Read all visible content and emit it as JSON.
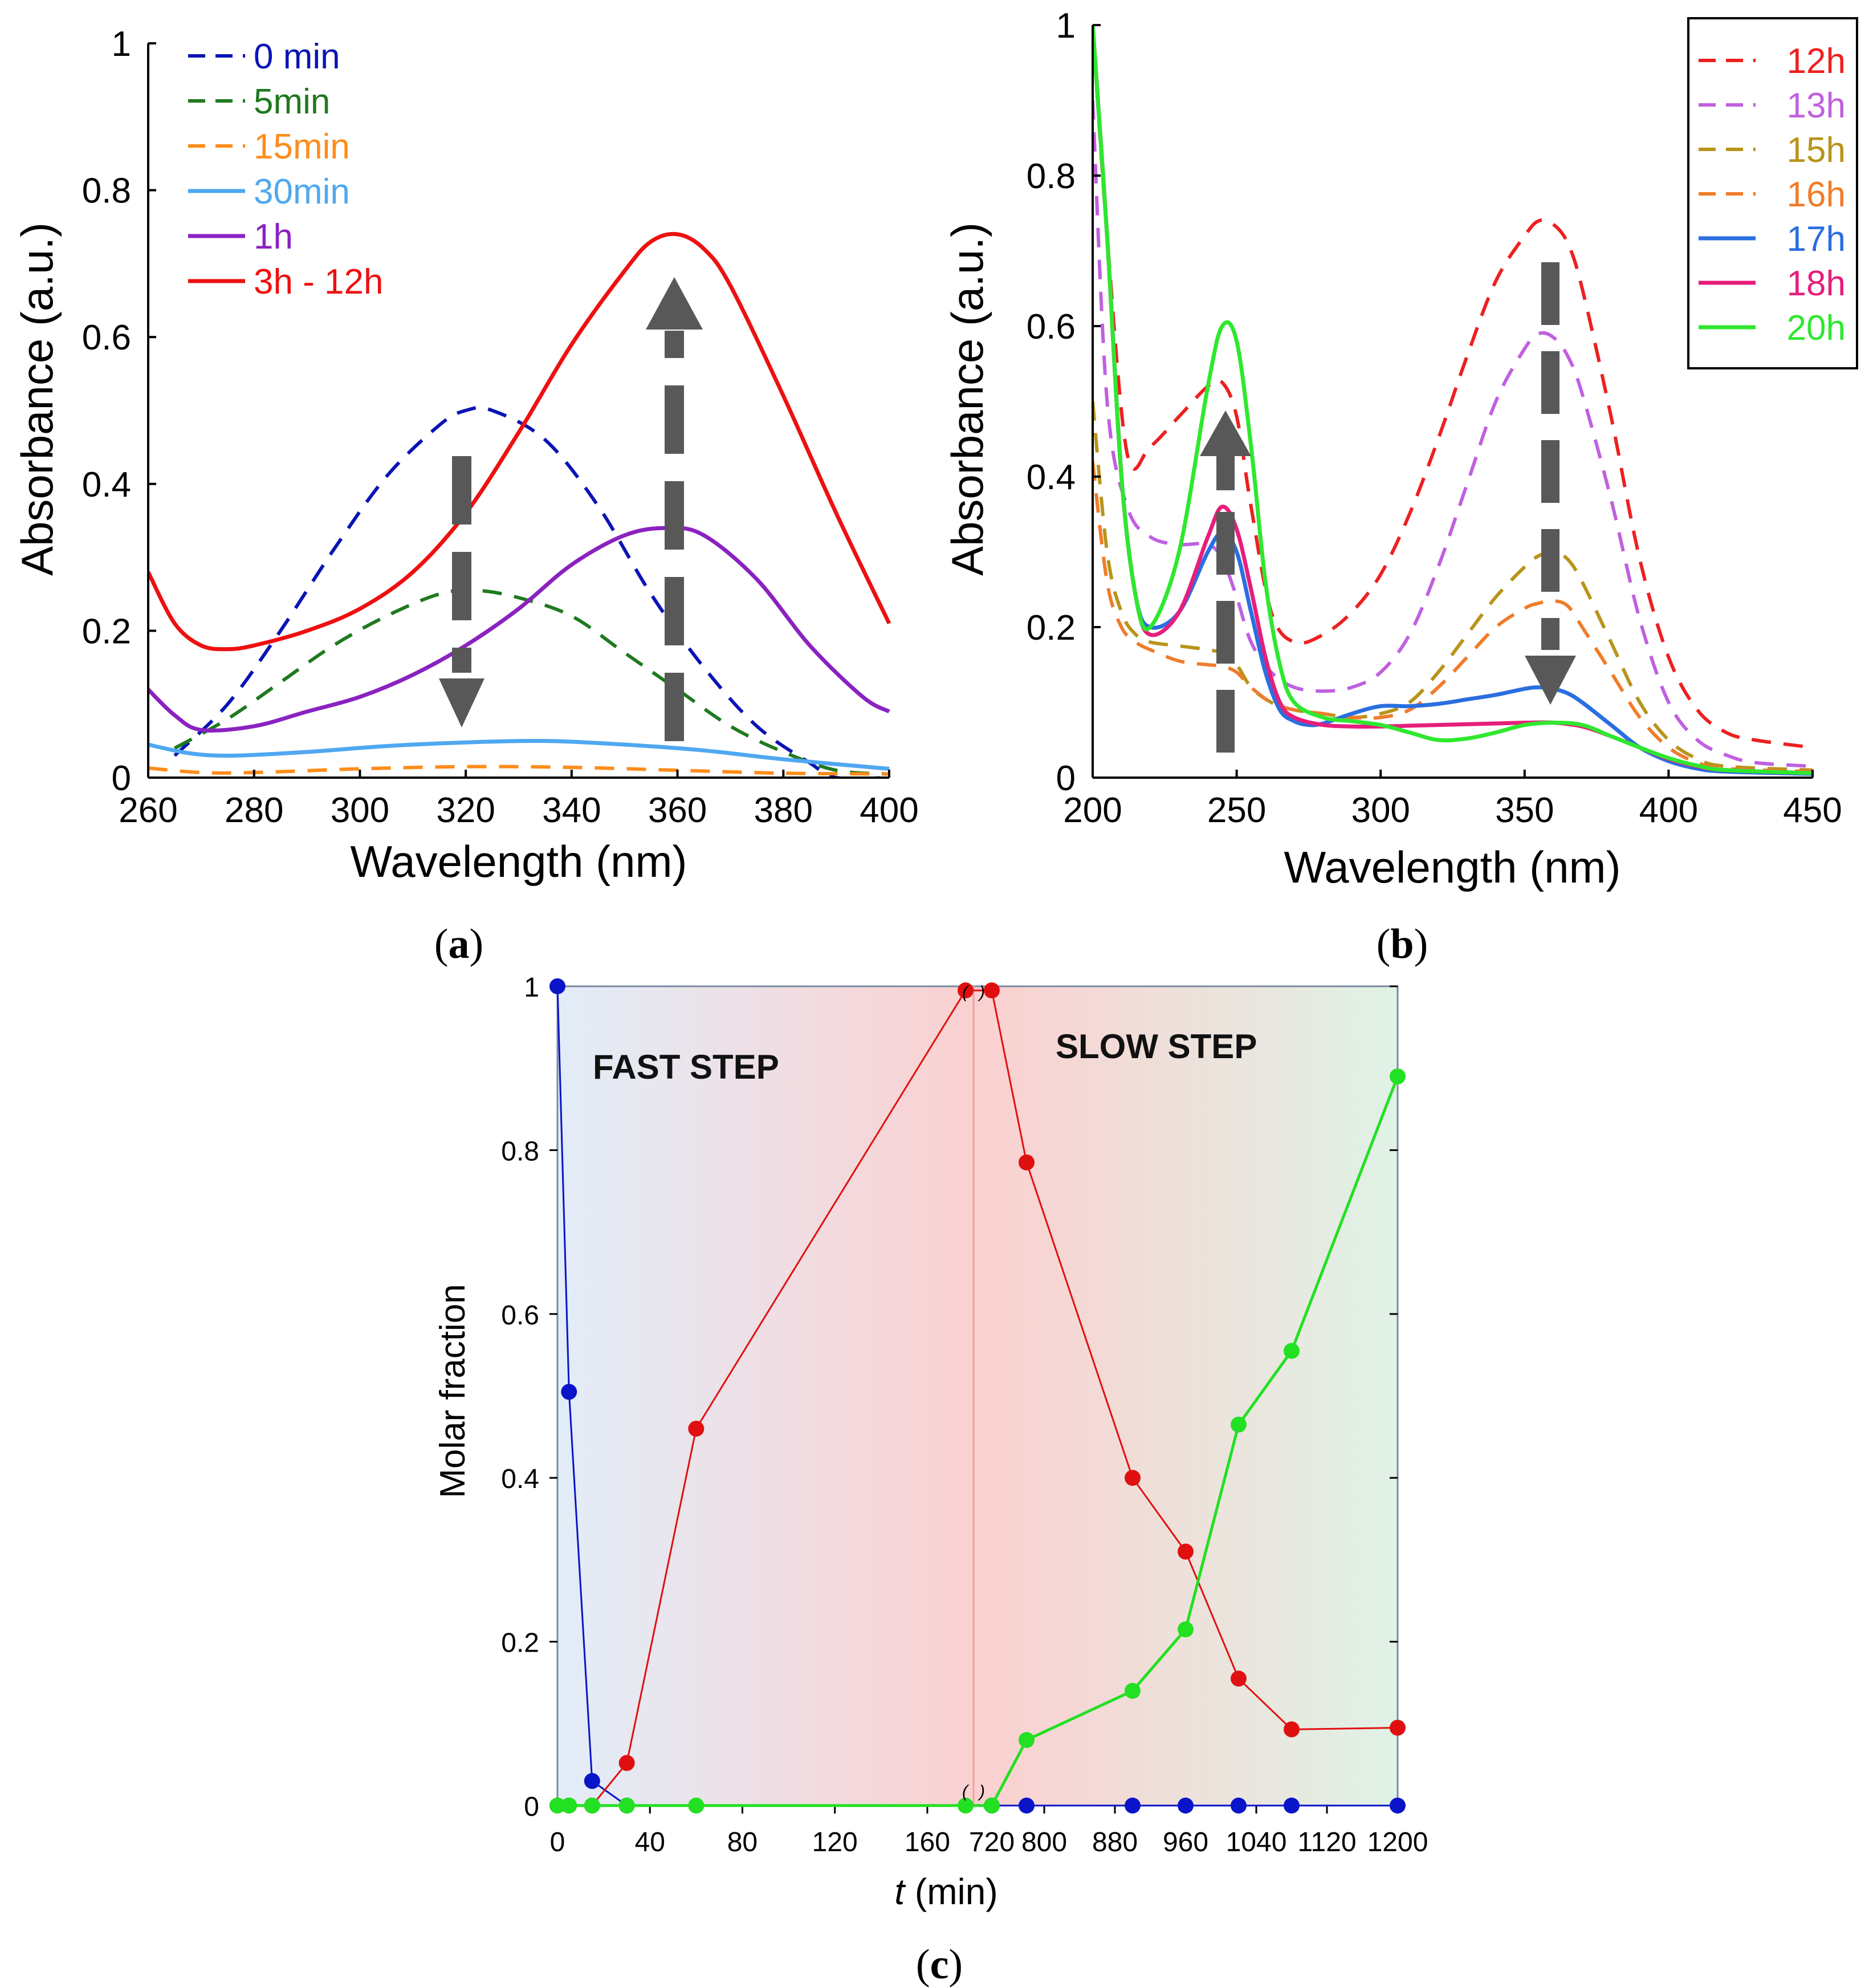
{
  "colors": {
    "arrow": "#585858",
    "axis": "#000000",
    "blue": "#0000c8",
    "red": "#e00000",
    "green": "#22e022"
  },
  "chart_data": [
    {
      "panel": "a",
      "type": "line",
      "panel_label": {
        "open": "(",
        "letter": "a",
        "close": ")"
      },
      "xlabel": "Wavelength (nm)",
      "ylabel": "Absorbance (a.u.)",
      "xlim": [
        260,
        400
      ],
      "ylim": [
        0,
        1
      ],
      "xticks": [
        260,
        280,
        300,
        320,
        340,
        360,
        380,
        400
      ],
      "yticks": [
        0,
        0.2,
        0.4,
        0.6,
        0.8,
        1
      ],
      "ytick_labels": [
        "0",
        "0.2",
        "0.4",
        "0.6",
        "0.8",
        "1"
      ],
      "legend_position": "top-left",
      "series": [
        {
          "name": "0 min",
          "color": "#0a14b4",
          "dash": "dashed",
          "x": [
            265,
            275,
            285,
            295,
            305,
            315,
            320,
            325,
            335,
            345,
            355,
            365,
            375,
            385,
            390,
            400
          ],
          "y": [
            0.03,
            0.1,
            0.2,
            0.31,
            0.41,
            0.48,
            0.5,
            0.5,
            0.46,
            0.37,
            0.25,
            0.15,
            0.07,
            0.02,
            0.0,
            0.0
          ]
        },
        {
          "name": "5min",
          "color": "#1f7a1f",
          "dash": "dashed",
          "x": [
            265,
            275,
            285,
            295,
            305,
            315,
            322,
            330,
            340,
            350,
            360,
            370,
            380,
            390,
            400
          ],
          "y": [
            0.04,
            0.08,
            0.13,
            0.18,
            0.22,
            0.25,
            0.255,
            0.245,
            0.22,
            0.17,
            0.12,
            0.07,
            0.035,
            0.01,
            0.005
          ]
        },
        {
          "name": "15min",
          "color": "#ff8c1a",
          "dash": "dashed",
          "x": [
            260,
            270,
            280,
            300,
            320,
            340,
            360,
            380,
            400
          ],
          "y": [
            0.013,
            0.007,
            0.007,
            0.012,
            0.015,
            0.014,
            0.01,
            0.006,
            0.005
          ]
        },
        {
          "name": "30min",
          "color": "#4fa8f0",
          "dash": "solid",
          "x": [
            260,
            268,
            276,
            290,
            305,
            320,
            335,
            350,
            365,
            380,
            400
          ],
          "y": [
            0.045,
            0.033,
            0.03,
            0.035,
            0.043,
            0.048,
            0.05,
            0.045,
            0.037,
            0.025,
            0.012
          ]
        },
        {
          "name": "1h",
          "color": "#8a22c0",
          "dash": "solid",
          "x": [
            260,
            265,
            270,
            280,
            290,
            300,
            310,
            320,
            330,
            340,
            350,
            358,
            365,
            375,
            385,
            395,
            400
          ],
          "y": [
            0.12,
            0.085,
            0.065,
            0.07,
            0.09,
            0.11,
            0.14,
            0.18,
            0.23,
            0.29,
            0.33,
            0.34,
            0.33,
            0.27,
            0.18,
            0.11,
            0.09
          ]
        },
        {
          "name": "3h - 12h",
          "color": "#ee1010",
          "dash": "solid",
          "x": [
            260,
            265,
            270,
            275,
            280,
            290,
            300,
            310,
            320,
            330,
            340,
            350,
            355,
            360,
            365,
            370,
            380,
            390,
            400
          ],
          "y": [
            0.28,
            0.21,
            0.18,
            0.175,
            0.18,
            0.2,
            0.23,
            0.28,
            0.36,
            0.47,
            0.59,
            0.69,
            0.73,
            0.74,
            0.72,
            0.67,
            0.52,
            0.36,
            0.21
          ]
        }
      ]
    },
    {
      "panel": "b",
      "type": "line",
      "panel_label": {
        "open": "(",
        "letter": "b",
        "close": ")"
      },
      "xlabel": "Wavelength (nm)",
      "ylabel": "Absorbance (a.u.)",
      "xlim": [
        200,
        450
      ],
      "ylim": [
        0,
        1
      ],
      "xticks": [
        200,
        250,
        300,
        350,
        400,
        450
      ],
      "yticks": [
        0,
        0.2,
        0.4,
        0.6,
        0.8,
        1
      ],
      "ytick_labels": [
        "0",
        "0.2",
        "0.4",
        "0.6",
        "0.8",
        "1"
      ],
      "legend_position": "top-right",
      "series": [
        {
          "name": "12h",
          "color": "#ee2020",
          "dash": "dashed",
          "x": [
            200,
            205,
            212,
            220,
            230,
            240,
            245,
            250,
            255,
            262,
            270,
            280,
            290,
            300,
            310,
            320,
            330,
            340,
            350,
            355,
            360,
            365,
            370,
            380,
            390,
            400,
            410,
            420,
            430,
            450
          ],
          "y": [
            1.0,
            0.72,
            0.43,
            0.44,
            0.48,
            0.52,
            0.525,
            0.48,
            0.36,
            0.22,
            0.18,
            0.19,
            0.22,
            0.27,
            0.35,
            0.45,
            0.56,
            0.66,
            0.72,
            0.74,
            0.735,
            0.71,
            0.65,
            0.48,
            0.29,
            0.16,
            0.09,
            0.06,
            0.05,
            0.04
          ]
        },
        {
          "name": "13h",
          "color": "#c060e0",
          "dash": "dashed",
          "x": [
            200,
            205,
            212,
            220,
            230,
            240,
            245,
            250,
            255,
            262,
            270,
            280,
            290,
            300,
            310,
            320,
            330,
            340,
            350,
            355,
            360,
            365,
            370,
            380,
            390,
            400,
            410,
            420,
            430,
            450
          ],
          "y": [
            0.9,
            0.5,
            0.36,
            0.32,
            0.31,
            0.31,
            0.29,
            0.24,
            0.18,
            0.14,
            0.12,
            0.115,
            0.12,
            0.14,
            0.19,
            0.28,
            0.39,
            0.5,
            0.57,
            0.59,
            0.585,
            0.56,
            0.51,
            0.37,
            0.21,
            0.1,
            0.05,
            0.03,
            0.02,
            0.015
          ]
        },
        {
          "name": "15h",
          "color": "#b8941a",
          "dash": "dashed",
          "x": [
            200,
            205,
            210,
            215,
            220,
            230,
            240,
            245,
            250,
            255,
            262,
            270,
            280,
            290,
            300,
            310,
            320,
            330,
            340,
            350,
            355,
            360,
            365,
            370,
            380,
            390,
            400,
            410,
            420,
            450
          ],
          "y": [
            0.5,
            0.3,
            0.22,
            0.19,
            0.18,
            0.175,
            0.17,
            0.165,
            0.15,
            0.12,
            0.1,
            0.09,
            0.085,
            0.08,
            0.085,
            0.1,
            0.14,
            0.19,
            0.24,
            0.28,
            0.295,
            0.3,
            0.29,
            0.26,
            0.18,
            0.1,
            0.05,
            0.025,
            0.015,
            0.01
          ]
        },
        {
          "name": "16h",
          "color": "#f07c2a",
          "dash": "dashed",
          "x": [
            200,
            205,
            210,
            215,
            220,
            230,
            240,
            245,
            250,
            255,
            262,
            270,
            280,
            290,
            300,
            310,
            320,
            330,
            340,
            350,
            355,
            360,
            365,
            370,
            380,
            390,
            400,
            410,
            420,
            450
          ],
          "y": [
            0.42,
            0.26,
            0.2,
            0.18,
            0.17,
            0.155,
            0.15,
            0.148,
            0.14,
            0.12,
            0.1,
            0.09,
            0.085,
            0.08,
            0.08,
            0.09,
            0.12,
            0.16,
            0.2,
            0.225,
            0.232,
            0.235,
            0.228,
            0.2,
            0.14,
            0.08,
            0.04,
            0.02,
            0.012,
            0.008
          ]
        },
        {
          "name": "17h",
          "color": "#2a6ee0",
          "dash": "solid",
          "x": [
            200,
            205,
            210,
            215,
            220,
            230,
            240,
            245,
            250,
            255,
            260,
            265,
            270,
            275,
            280,
            290,
            300,
            310,
            320,
            330,
            340,
            350,
            355,
            360,
            365,
            370,
            380,
            390,
            400,
            410,
            420,
            450
          ],
          "y": [
            1.0,
            0.72,
            0.4,
            0.24,
            0.2,
            0.22,
            0.3,
            0.325,
            0.3,
            0.22,
            0.14,
            0.09,
            0.075,
            0.07,
            0.072,
            0.085,
            0.095,
            0.095,
            0.098,
            0.104,
            0.11,
            0.118,
            0.12,
            0.118,
            0.112,
            0.1,
            0.07,
            0.04,
            0.022,
            0.012,
            0.008,
            0.005
          ]
        },
        {
          "name": "18h",
          "color": "#e61e7c",
          "dash": "solid",
          "x": [
            200,
            205,
            210,
            215,
            220,
            230,
            240,
            245,
            250,
            255,
            260,
            265,
            270,
            280,
            290,
            300,
            310,
            320,
            330,
            340,
            350,
            360,
            370,
            380,
            390,
            400,
            410,
            420,
            450
          ],
          "y": [
            1.0,
            0.72,
            0.4,
            0.24,
            0.19,
            0.22,
            0.32,
            0.36,
            0.33,
            0.25,
            0.16,
            0.1,
            0.08,
            0.07,
            0.068,
            0.068,
            0.069,
            0.07,
            0.071,
            0.072,
            0.073,
            0.073,
            0.068,
            0.055,
            0.04,
            0.025,
            0.015,
            0.01,
            0.006
          ]
        },
        {
          "name": "20h",
          "color": "#2ee82e",
          "dash": "solid",
          "x": [
            200,
            205,
            210,
            215,
            220,
            230,
            240,
            245,
            250,
            255,
            260,
            265,
            270,
            280,
            290,
            300,
            310,
            320,
            330,
            340,
            350,
            360,
            370,
            380,
            390,
            400,
            410,
            420,
            450
          ],
          "y": [
            1.0,
            0.72,
            0.4,
            0.24,
            0.2,
            0.3,
            0.52,
            0.6,
            0.58,
            0.44,
            0.26,
            0.15,
            0.1,
            0.08,
            0.075,
            0.07,
            0.06,
            0.05,
            0.052,
            0.06,
            0.07,
            0.073,
            0.07,
            0.055,
            0.04,
            0.026,
            0.016,
            0.01,
            0.006
          ]
        }
      ]
    },
    {
      "panel": "c",
      "type": "line",
      "panel_label": {
        "open": "(",
        "letter": "c",
        "close": ")"
      },
      "xlabel_italic": "t",
      "xlabel_rest": " (min)",
      "ylabel": "Molar fraction",
      "ylim": [
        0,
        1
      ],
      "yticks": [
        0,
        0.2,
        0.4,
        0.6,
        0.8,
        1
      ],
      "ytick_labels": [
        "0",
        "0.2",
        "0.4",
        "0.6",
        "0.8",
        "1"
      ],
      "axis_break": {
        "left_segment": [
          0,
          180
        ],
        "right_segment": [
          720,
          1200
        ],
        "break_marks": [
          "(",
          ")"
        ]
      },
      "xticks": [
        0,
        40,
        80,
        120,
        160,
        720,
        800,
        880,
        960,
        1040,
        1120,
        1200
      ],
      "xtick_labels": [
        "0",
        "40",
        "80",
        "120",
        "160",
        "720",
        "800",
        "880",
        "960",
        "1040",
        "1120",
        "1200"
      ],
      "annotations": [
        "FAST STEP",
        "SLOW STEP"
      ],
      "series": [
        {
          "name": "blue",
          "color": "#0a14c8",
          "x": [
            0,
            5,
            15,
            30,
            720,
            780,
            900,
            960,
            1020,
            1080,
            1200
          ],
          "y": [
            1.0,
            0.505,
            0.03,
            0.0,
            0.0,
            0.0,
            0.0,
            0.0,
            0.0,
            0.0,
            0.0
          ]
        },
        {
          "name": "red",
          "color": "#e01010",
          "x": [
            0,
            5,
            15,
            30,
            60,
            180,
            720,
            780,
            900,
            960,
            1020,
            1080,
            1200
          ],
          "y": [
            0.0,
            0.0,
            0.0,
            0.052,
            0.46,
            0.995,
            0.995,
            0.785,
            0.4,
            0.31,
            0.155,
            0.093,
            0.095
          ]
        },
        {
          "name": "green",
          "color": "#22e022",
          "x": [
            0,
            5,
            15,
            30,
            60,
            180,
            720,
            780,
            900,
            960,
            1020,
            1080,
            1200
          ],
          "y": [
            0.0,
            0.0,
            0.0,
            0.0,
            0.0,
            0.0,
            0.0,
            0.08,
            0.14,
            0.215,
            0.465,
            0.555,
            0.89
          ]
        }
      ]
    }
  ]
}
